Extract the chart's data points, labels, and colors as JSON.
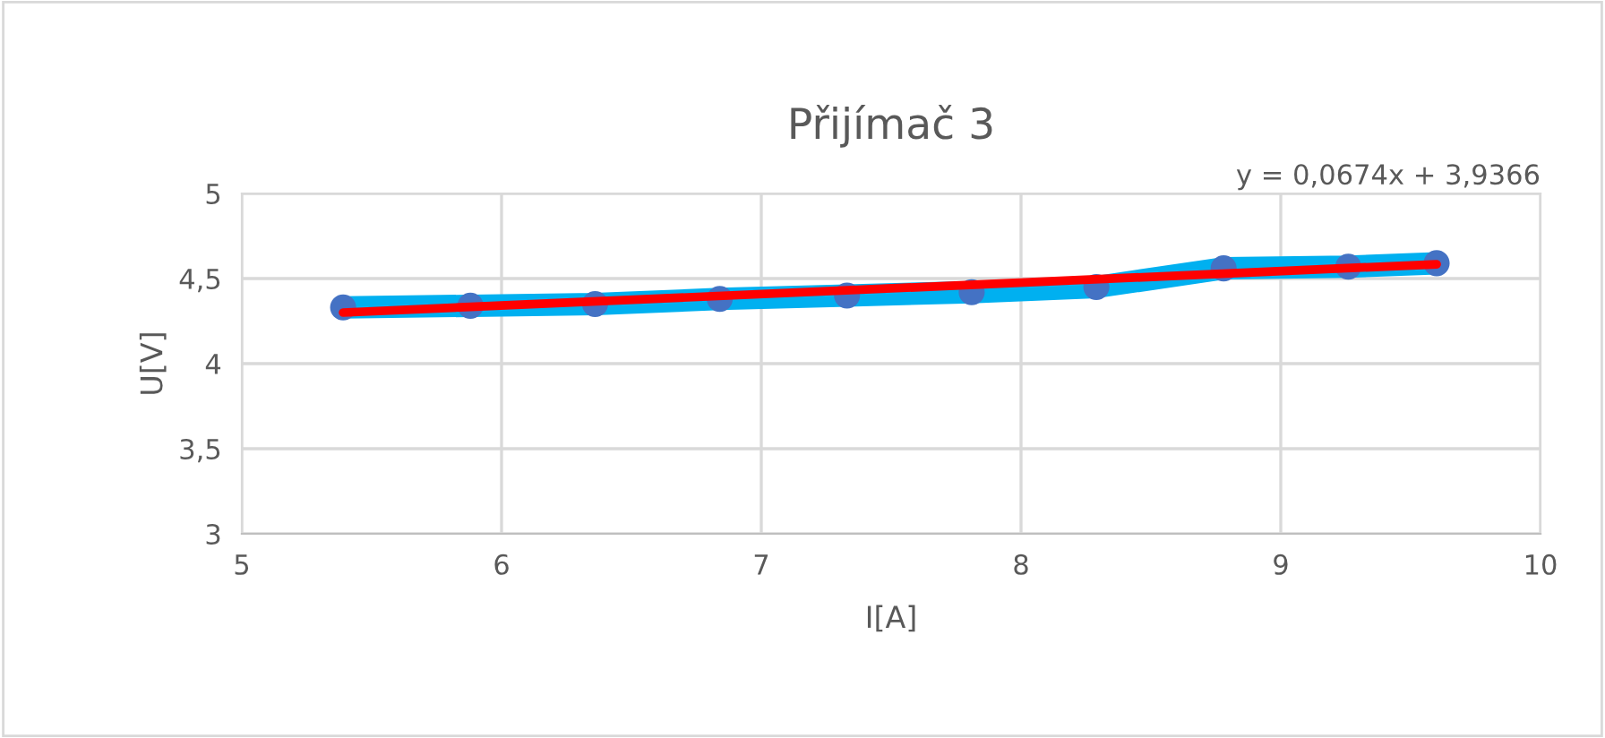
{
  "chart_data": {
    "type": "line",
    "title": "Přijímač 3",
    "xlabel": "I[A]",
    "ylabel": "U[V]",
    "x": [
      5.39,
      5.88,
      6.36,
      6.84,
      7.33,
      7.81,
      8.29,
      8.78,
      9.26,
      9.6
    ],
    "series": [
      {
        "color": "#00b0f0",
        "colors": [
          "#4472c4",
          "#4472c4",
          "#4472c4",
          "#4472c4",
          "#4472c4",
          "#4472c4",
          "#4472c4",
          "#4472c4",
          "#4472c4",
          "#4472c4"
        ],
        "marker": "circle",
        "values": [
          4.33,
          4.34,
          4.35,
          4.38,
          4.4,
          4.42,
          4.45,
          4.56,
          4.57,
          4.59
        ]
      },
      {
        "color": "#ff0000",
        "marker": "none",
        "x": [
          5.39,
          9.6
        ],
        "values": [
          4.3,
          4.584
        ]
      }
    ],
    "annotations": [
      "y = 0,0674x + 3,9366"
    ],
    "xlim": [
      5,
      10
    ],
    "xticks": [
      5,
      6,
      7,
      8,
      9,
      10
    ],
    "ylim": [
      3,
      5
    ],
    "yticks": [
      3,
      {
        "value": 3.5,
        "label": "3,5"
      },
      4,
      {
        "value": 4.5,
        "label": "4,5"
      },
      5
    ],
    "grid": true,
    "legend": false
  }
}
